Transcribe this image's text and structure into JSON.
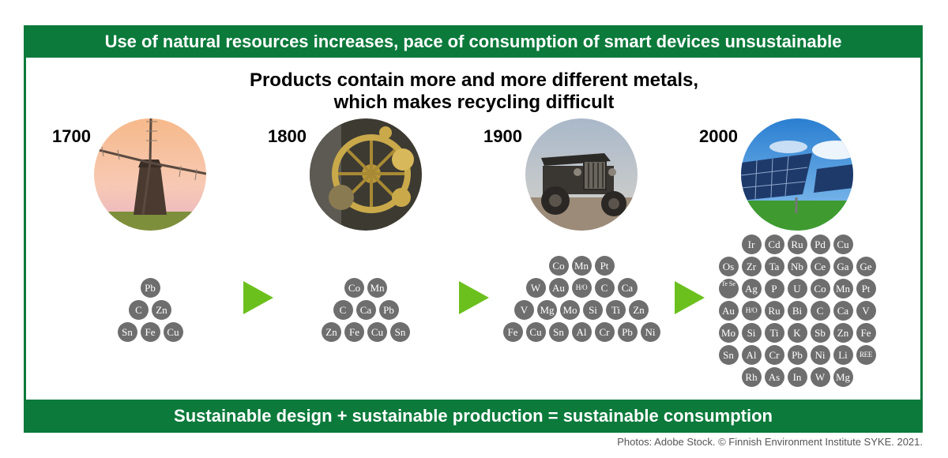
{
  "header": {
    "title": "Use of natural resources increases, pace of consumption of smart devices unsustainable"
  },
  "subtitle": {
    "line1": "Products contain more and more different metals,",
    "line2": "which makes recycling difficult"
  },
  "footer": {
    "text": "Sustainable design + sustainable production = sustainable consumption"
  },
  "credit": "Photos: Adobe Stock. © Finnish Environment Institute SYKE. 2021.",
  "colors": {
    "brand_green": "#0b7a3b",
    "arrow_green": "#6cc01e",
    "element_gray": "#6e6e6e"
  },
  "eras": [
    {
      "year": "1700",
      "photo": "windmill",
      "rows": [
        [
          "Pb"
        ],
        [
          "C",
          "Zn"
        ],
        [
          "Sn",
          "Fe",
          "Cu"
        ]
      ]
    },
    {
      "year": "1800",
      "photo": "machinery-gears",
      "rows": [
        [
          "Co",
          "Mn"
        ],
        [
          "C",
          "Ca",
          "Pb"
        ],
        [
          "Zn",
          "Fe",
          "Cu",
          "Sn"
        ]
      ]
    },
    {
      "year": "1900",
      "photo": "vintage-car",
      "rows": [
        [
          "Co",
          "Mn",
          "Pt"
        ],
        [
          "W",
          "Au",
          "H/O",
          "C",
          "Ca"
        ],
        [
          "V",
          "Mg",
          "Mo",
          "Si",
          "Ti",
          "Zn"
        ],
        [
          "Fe",
          "Cu",
          "Sn",
          "Al",
          "Cr",
          "Pb",
          "Ni"
        ]
      ]
    },
    {
      "year": "2000",
      "photo": "solar-panels",
      "rows": [
        [
          "Ir",
          "Cd",
          "Ru",
          "Pd",
          "Cu"
        ],
        [
          "Os",
          "Zr",
          "Ta",
          "Nb",
          "Ce",
          "Ga",
          "Ge"
        ],
        [
          "Te Se",
          "Ag",
          "P",
          "U",
          "Co",
          "Mn",
          "Pt"
        ],
        [
          "Au",
          "H/O",
          "Ru",
          "Bi",
          "C",
          "Ca",
          "V"
        ],
        [
          "Mo",
          "Si",
          "Ti",
          "K",
          "Sb",
          "Zn",
          "Fe"
        ],
        [
          "Sn",
          "Al",
          "Cr",
          "Pb",
          "Ni",
          "Li",
          "REE"
        ],
        [
          "Rh",
          "As",
          "In",
          "W",
          "Mg"
        ]
      ]
    }
  ]
}
